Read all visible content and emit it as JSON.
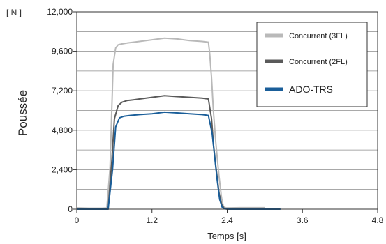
{
  "chart_data": {
    "type": "line",
    "unit_label": "[ N ]",
    "ylabel": "Poussée",
    "xlabel": "Temps [s]",
    "xlim": [
      0,
      4.8
    ],
    "ylim": [
      0,
      12000
    ],
    "x_ticks": [
      "0",
      "1.2",
      "2.4",
      "3.6",
      "4.8"
    ],
    "y_ticks": [
      "0",
      "2,400",
      "4,800",
      "7,200",
      "9,600",
      "12,000"
    ],
    "x_tick_values": [
      0,
      1.2,
      2.4,
      3.6,
      4.8
    ],
    "y_tick_values": [
      0,
      2400,
      4800,
      7200,
      9600,
      12000
    ],
    "minor_grid_y_step": 1200,
    "grid": true,
    "legend_position": "top-right",
    "series": [
      {
        "name": "Concurrent (3FL)",
        "color": "#b9b9b9",
        "x": [
          0,
          0.2,
          0.4,
          0.48,
          0.53,
          0.58,
          0.62,
          0.66,
          0.72,
          0.8,
          0.9,
          1.0,
          1.2,
          1.4,
          1.6,
          1.8,
          2.0,
          2.1,
          2.12,
          2.15,
          2.18,
          2.22,
          2.27,
          2.31,
          2.34,
          2.38,
          2.45,
          2.6,
          2.8,
          3.0
        ],
        "y": [
          80,
          60,
          60,
          70,
          2500,
          8800,
          9800,
          10000,
          10050,
          10100,
          10150,
          10200,
          10300,
          10400,
          10350,
          10250,
          10200,
          10150,
          9500,
          8000,
          6000,
          4000,
          2000,
          700,
          150,
          80,
          80,
          90,
          90,
          90
        ]
      },
      {
        "name": "Concurrent (2FL)",
        "color": "#5a5a5a",
        "x": [
          0,
          0.2,
          0.4,
          0.5,
          0.56,
          0.6,
          0.66,
          0.72,
          0.8,
          0.9,
          1.0,
          1.2,
          1.4,
          1.6,
          1.8,
          2.0,
          2.1,
          2.15,
          2.18,
          2.22,
          2.27,
          2.31,
          2.35,
          2.4,
          2.6,
          2.8
        ],
        "y": [
          0,
          0,
          0,
          0,
          3000,
          5500,
          6300,
          6500,
          6600,
          6650,
          6700,
          6800,
          6900,
          6850,
          6800,
          6750,
          6700,
          5500,
          4000,
          2600,
          1000,
          300,
          50,
          0,
          0,
          0
        ]
      },
      {
        "name": "ADO-TRS",
        "color": "#1a5e99",
        "x": [
          0,
          0.2,
          0.4,
          0.5,
          0.57,
          0.62,
          0.68,
          0.75,
          0.85,
          1.0,
          1.2,
          1.4,
          1.6,
          1.8,
          2.0,
          2.1,
          2.16,
          2.2,
          2.24,
          2.28,
          2.32,
          2.36,
          2.42,
          2.6,
          2.8,
          3.0,
          3.2,
          3.25
        ],
        "y": [
          0,
          0,
          0,
          0,
          2400,
          5000,
          5550,
          5650,
          5700,
          5750,
          5800,
          5900,
          5850,
          5800,
          5750,
          5700,
          4600,
          3200,
          1800,
          600,
          120,
          20,
          0,
          0,
          0,
          0,
          0,
          0
        ]
      }
    ]
  }
}
